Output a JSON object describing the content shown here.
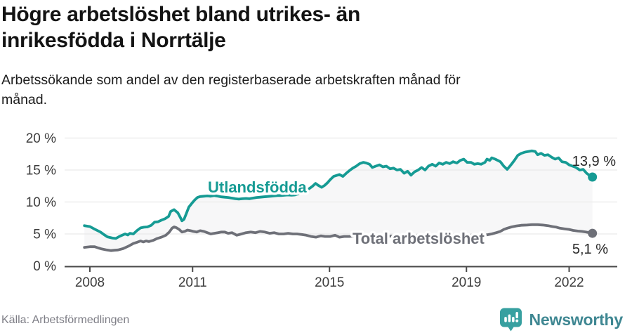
{
  "header": {
    "title_line1": "Högre arbetslöshet bland utrikes- än",
    "title_line2": "inrikesfödda i Norrtälje",
    "subtitle_line1": "Arbetssökande som andel av den registerbaserade arbetskraften månad för",
    "subtitle_line2": "månad."
  },
  "footer": {
    "source": "Källa: Arbetsförmedlingen",
    "brand": "Newsworthy"
  },
  "colors": {
    "series_foreign": "#169b94",
    "series_total": "#6e7078",
    "band_fill": "#f7f7f8",
    "gridline": "#e9e9e9",
    "axis": "#4a4a4a",
    "tick_text": "#3d3d3d",
    "value_label_text": "#272727",
    "logo_icon": "#37a0a0",
    "logo_text": "#3f8792"
  },
  "chart_data": {
    "type": "line",
    "title": "Högre arbetslöshet bland utrikes- än inrikesfödda i Norrtälje",
    "xlabel": "",
    "ylabel": "",
    "grid": true,
    "band_fill_between_series": true,
    "x_axis": {
      "ticks": [
        2008,
        2011,
        2015,
        2019,
        2022
      ],
      "tick_labels": [
        "2008",
        "2011",
        "2015",
        "2019",
        "2022"
      ],
      "range": [
        2007.7,
        2023.4
      ]
    },
    "y_axis": {
      "ticks": [
        0,
        5,
        10,
        15,
        20
      ],
      "tick_labels": [
        "0 %",
        "5 %",
        "10 %",
        "15 %",
        "20 %"
      ],
      "range": [
        0,
        20
      ]
    },
    "series": [
      {
        "name": "Utlandsfödda",
        "color": "#169b94",
        "end_label": "13,9 %",
        "end_value": 13.9,
        "points": [
          [
            2007.84,
            6.3
          ],
          [
            2008.0,
            6.15
          ],
          [
            2008.14,
            5.75
          ],
          [
            2008.31,
            5.3
          ],
          [
            2008.41,
            4.9
          ],
          [
            2008.51,
            4.55
          ],
          [
            2008.66,
            4.35
          ],
          [
            2008.76,
            4.3
          ],
          [
            2008.86,
            4.6
          ],
          [
            2008.92,
            4.75
          ],
          [
            2009.03,
            5.0
          ],
          [
            2009.11,
            4.85
          ],
          [
            2009.17,
            5.1
          ],
          [
            2009.27,
            5.0
          ],
          [
            2009.38,
            5.55
          ],
          [
            2009.48,
            5.95
          ],
          [
            2009.58,
            6.05
          ],
          [
            2009.68,
            6.1
          ],
          [
            2009.79,
            6.35
          ],
          [
            2009.89,
            6.85
          ],
          [
            2009.99,
            6.9
          ],
          [
            2010.09,
            7.15
          ],
          [
            2010.2,
            7.4
          ],
          [
            2010.3,
            7.75
          ],
          [
            2010.36,
            8.5
          ],
          [
            2010.46,
            8.8
          ],
          [
            2010.57,
            8.3
          ],
          [
            2010.65,
            7.5
          ],
          [
            2010.69,
            7.05
          ],
          [
            2010.75,
            7.3
          ],
          [
            2010.81,
            8.1
          ],
          [
            2010.89,
            9.2
          ],
          [
            2010.98,
            9.8
          ],
          [
            2011.06,
            10.3
          ],
          [
            2011.14,
            10.7
          ],
          [
            2011.22,
            10.85
          ],
          [
            2011.33,
            10.9
          ],
          [
            2011.43,
            10.95
          ],
          [
            2011.53,
            10.9
          ],
          [
            2011.63,
            11.0
          ],
          [
            2011.74,
            10.9
          ],
          [
            2011.84,
            10.8
          ],
          [
            2011.94,
            10.75
          ],
          [
            2012.04,
            10.7
          ],
          [
            2012.15,
            10.6
          ],
          [
            2012.25,
            10.5
          ],
          [
            2012.35,
            10.45
          ],
          [
            2012.45,
            10.5
          ],
          [
            2012.56,
            10.55
          ],
          [
            2012.66,
            10.5
          ],
          [
            2012.76,
            10.6
          ],
          [
            2012.87,
            10.7
          ],
          [
            2012.97,
            10.75
          ],
          [
            2013.07,
            10.8
          ],
          [
            2013.17,
            10.85
          ],
          [
            2013.28,
            10.9
          ],
          [
            2013.38,
            10.95
          ],
          [
            2013.48,
            11.0
          ],
          [
            2013.58,
            11.0
          ],
          [
            2013.69,
            11.05
          ],
          [
            2013.79,
            11.1
          ],
          [
            2013.89,
            11.05
          ],
          [
            2013.99,
            11.1
          ],
          [
            2014.1,
            11.3
          ],
          [
            2014.2,
            11.55
          ],
          [
            2014.3,
            11.8
          ],
          [
            2014.41,
            12.1
          ],
          [
            2014.51,
            12.5
          ],
          [
            2014.59,
            12.9
          ],
          [
            2014.67,
            12.6
          ],
          [
            2014.77,
            12.3
          ],
          [
            2014.86,
            12.6
          ],
          [
            2014.94,
            13.0
          ],
          [
            2015.02,
            13.5
          ],
          [
            2015.12,
            14.0
          ],
          [
            2015.29,
            14.3
          ],
          [
            2015.39,
            14.0
          ],
          [
            2015.49,
            14.5
          ],
          [
            2015.58,
            14.9
          ],
          [
            2015.68,
            15.3
          ],
          [
            2015.78,
            15.6
          ],
          [
            2015.88,
            16.0
          ],
          [
            2015.99,
            16.2
          ],
          [
            2016.07,
            16.1
          ],
          [
            2016.17,
            15.9
          ],
          [
            2016.25,
            15.4
          ],
          [
            2016.35,
            15.6
          ],
          [
            2016.46,
            15.8
          ],
          [
            2016.56,
            15.5
          ],
          [
            2016.66,
            15.6
          ],
          [
            2016.77,
            15.2
          ],
          [
            2016.87,
            15.3
          ],
          [
            2016.97,
            15.0
          ],
          [
            2017.07,
            15.1
          ],
          [
            2017.18,
            14.5
          ],
          [
            2017.28,
            14.8
          ],
          [
            2017.38,
            14.2
          ],
          [
            2017.48,
            14.7
          ],
          [
            2017.59,
            15.0
          ],
          [
            2017.69,
            15.4
          ],
          [
            2017.79,
            15.0
          ],
          [
            2017.89,
            15.6
          ],
          [
            2018.0,
            15.9
          ],
          [
            2018.1,
            15.6
          ],
          [
            2018.2,
            16.1
          ],
          [
            2018.31,
            15.9
          ],
          [
            2018.41,
            16.2
          ],
          [
            2018.51,
            16.0
          ],
          [
            2018.61,
            16.3
          ],
          [
            2018.72,
            16.1
          ],
          [
            2018.82,
            16.5
          ],
          [
            2018.92,
            16.7
          ],
          [
            2019.02,
            16.2
          ],
          [
            2019.13,
            16.2
          ],
          [
            2019.23,
            15.9
          ],
          [
            2019.33,
            16.0
          ],
          [
            2019.43,
            15.9
          ],
          [
            2019.54,
            16.2
          ],
          [
            2019.6,
            16.7
          ],
          [
            2019.68,
            16.5
          ],
          [
            2019.74,
            16.9
          ],
          [
            2019.84,
            16.7
          ],
          [
            2019.99,
            16.3
          ],
          [
            2020.09,
            15.6
          ],
          [
            2020.19,
            15.1
          ],
          [
            2020.3,
            15.8
          ],
          [
            2020.4,
            16.5
          ],
          [
            2020.5,
            17.3
          ],
          [
            2020.6,
            17.6
          ],
          [
            2020.71,
            17.8
          ],
          [
            2020.81,
            17.9
          ],
          [
            2020.91,
            18.0
          ],
          [
            2021.01,
            17.9
          ],
          [
            2021.08,
            17.4
          ],
          [
            2021.18,
            17.6
          ],
          [
            2021.28,
            17.3
          ],
          [
            2021.38,
            17.4
          ],
          [
            2021.49,
            17.0
          ],
          [
            2021.59,
            16.7
          ],
          [
            2021.69,
            16.9
          ],
          [
            2021.79,
            16.3
          ],
          [
            2021.9,
            16.2
          ],
          [
            2022.0,
            15.8
          ],
          [
            2022.1,
            15.6
          ],
          [
            2022.2,
            15.4
          ],
          [
            2022.31,
            15.0
          ],
          [
            2022.41,
            15.1
          ],
          [
            2022.51,
            14.5
          ],
          [
            2022.61,
            14.1
          ],
          [
            2022.68,
            13.9
          ]
        ]
      },
      {
        "name": "Total arbetslöshet",
        "color": "#6e7078",
        "end_label": "5,1 %",
        "end_value": 5.1,
        "points": [
          [
            2007.84,
            2.9
          ],
          [
            2008.0,
            3.0
          ],
          [
            2008.14,
            3.0
          ],
          [
            2008.25,
            2.8
          ],
          [
            2008.35,
            2.65
          ],
          [
            2008.49,
            2.5
          ],
          [
            2008.62,
            2.4
          ],
          [
            2008.72,
            2.45
          ],
          [
            2008.82,
            2.5
          ],
          [
            2008.97,
            2.7
          ],
          [
            2009.13,
            3.1
          ],
          [
            2009.27,
            3.5
          ],
          [
            2009.38,
            3.7
          ],
          [
            2009.48,
            3.9
          ],
          [
            2009.56,
            3.75
          ],
          [
            2009.64,
            3.9
          ],
          [
            2009.72,
            3.8
          ],
          [
            2009.85,
            4.0
          ],
          [
            2009.97,
            4.3
          ],
          [
            2010.09,
            4.5
          ],
          [
            2010.22,
            4.8
          ],
          [
            2010.32,
            5.3
          ],
          [
            2010.4,
            5.9
          ],
          [
            2010.46,
            6.1
          ],
          [
            2010.52,
            6.0
          ],
          [
            2010.61,
            5.7
          ],
          [
            2010.69,
            5.3
          ],
          [
            2010.77,
            5.4
          ],
          [
            2010.85,
            5.6
          ],
          [
            2010.94,
            5.5
          ],
          [
            2011.02,
            5.4
          ],
          [
            2011.12,
            5.3
          ],
          [
            2011.22,
            5.5
          ],
          [
            2011.33,
            5.4
          ],
          [
            2011.43,
            5.2
          ],
          [
            2011.53,
            5.0
          ],
          [
            2011.63,
            5.1
          ],
          [
            2011.74,
            5.2
          ],
          [
            2011.84,
            5.3
          ],
          [
            2011.94,
            5.3
          ],
          [
            2012.04,
            5.1
          ],
          [
            2012.15,
            5.2
          ],
          [
            2012.29,
            4.8
          ],
          [
            2012.43,
            5.0
          ],
          [
            2012.56,
            5.2
          ],
          [
            2012.7,
            5.3
          ],
          [
            2012.84,
            5.2
          ],
          [
            2012.97,
            5.4
          ],
          [
            2013.11,
            5.3
          ],
          [
            2013.25,
            5.1
          ],
          [
            2013.38,
            5.2
          ],
          [
            2013.52,
            5.0
          ],
          [
            2013.66,
            5.0
          ],
          [
            2013.79,
            5.1
          ],
          [
            2013.93,
            5.0
          ],
          [
            2014.05,
            5.0
          ],
          [
            2014.2,
            4.9
          ],
          [
            2014.32,
            4.8
          ],
          [
            2014.46,
            4.6
          ],
          [
            2014.61,
            4.5
          ],
          [
            2014.75,
            4.7
          ],
          [
            2014.87,
            4.6
          ],
          [
            2015.02,
            4.6
          ],
          [
            2015.16,
            4.8
          ],
          [
            2015.29,
            4.5
          ],
          [
            2015.43,
            4.6
          ],
          [
            2015.58,
            4.6
          ],
          [
            2015.7,
            4.7
          ],
          [
            2015.84,
            4.6
          ],
          [
            2016.04,
            4.7
          ],
          [
            2016.25,
            4.6
          ],
          [
            2016.46,
            4.7
          ],
          [
            2016.66,
            4.6
          ],
          [
            2016.87,
            4.7
          ],
          [
            2017.07,
            4.6
          ],
          [
            2017.28,
            4.7
          ],
          [
            2017.48,
            4.8
          ],
          [
            2017.69,
            4.7
          ],
          [
            2017.89,
            4.8
          ],
          [
            2018.1,
            4.7
          ],
          [
            2018.31,
            4.8
          ],
          [
            2018.51,
            4.7
          ],
          [
            2018.72,
            4.8
          ],
          [
            2018.92,
            4.7
          ],
          [
            2019.13,
            4.8
          ],
          [
            2019.33,
            4.7
          ],
          [
            2019.54,
            4.8
          ],
          [
            2019.64,
            4.9
          ],
          [
            2019.74,
            5.0
          ],
          [
            2019.87,
            5.2
          ],
          [
            2019.99,
            5.4
          ],
          [
            2020.09,
            5.7
          ],
          [
            2020.19,
            5.9
          ],
          [
            2020.32,
            6.1
          ],
          [
            2020.46,
            6.25
          ],
          [
            2020.6,
            6.35
          ],
          [
            2020.77,
            6.4
          ],
          [
            2020.91,
            6.45
          ],
          [
            2021.08,
            6.45
          ],
          [
            2021.22,
            6.4
          ],
          [
            2021.38,
            6.3
          ],
          [
            2021.51,
            6.15
          ],
          [
            2021.63,
            6.05
          ],
          [
            2021.73,
            5.9
          ],
          [
            2021.86,
            5.8
          ],
          [
            2022.0,
            5.7
          ],
          [
            2022.12,
            5.55
          ],
          [
            2022.25,
            5.45
          ],
          [
            2022.37,
            5.4
          ],
          [
            2022.49,
            5.3
          ],
          [
            2022.59,
            5.2
          ],
          [
            2022.68,
            5.1
          ]
        ]
      }
    ]
  }
}
